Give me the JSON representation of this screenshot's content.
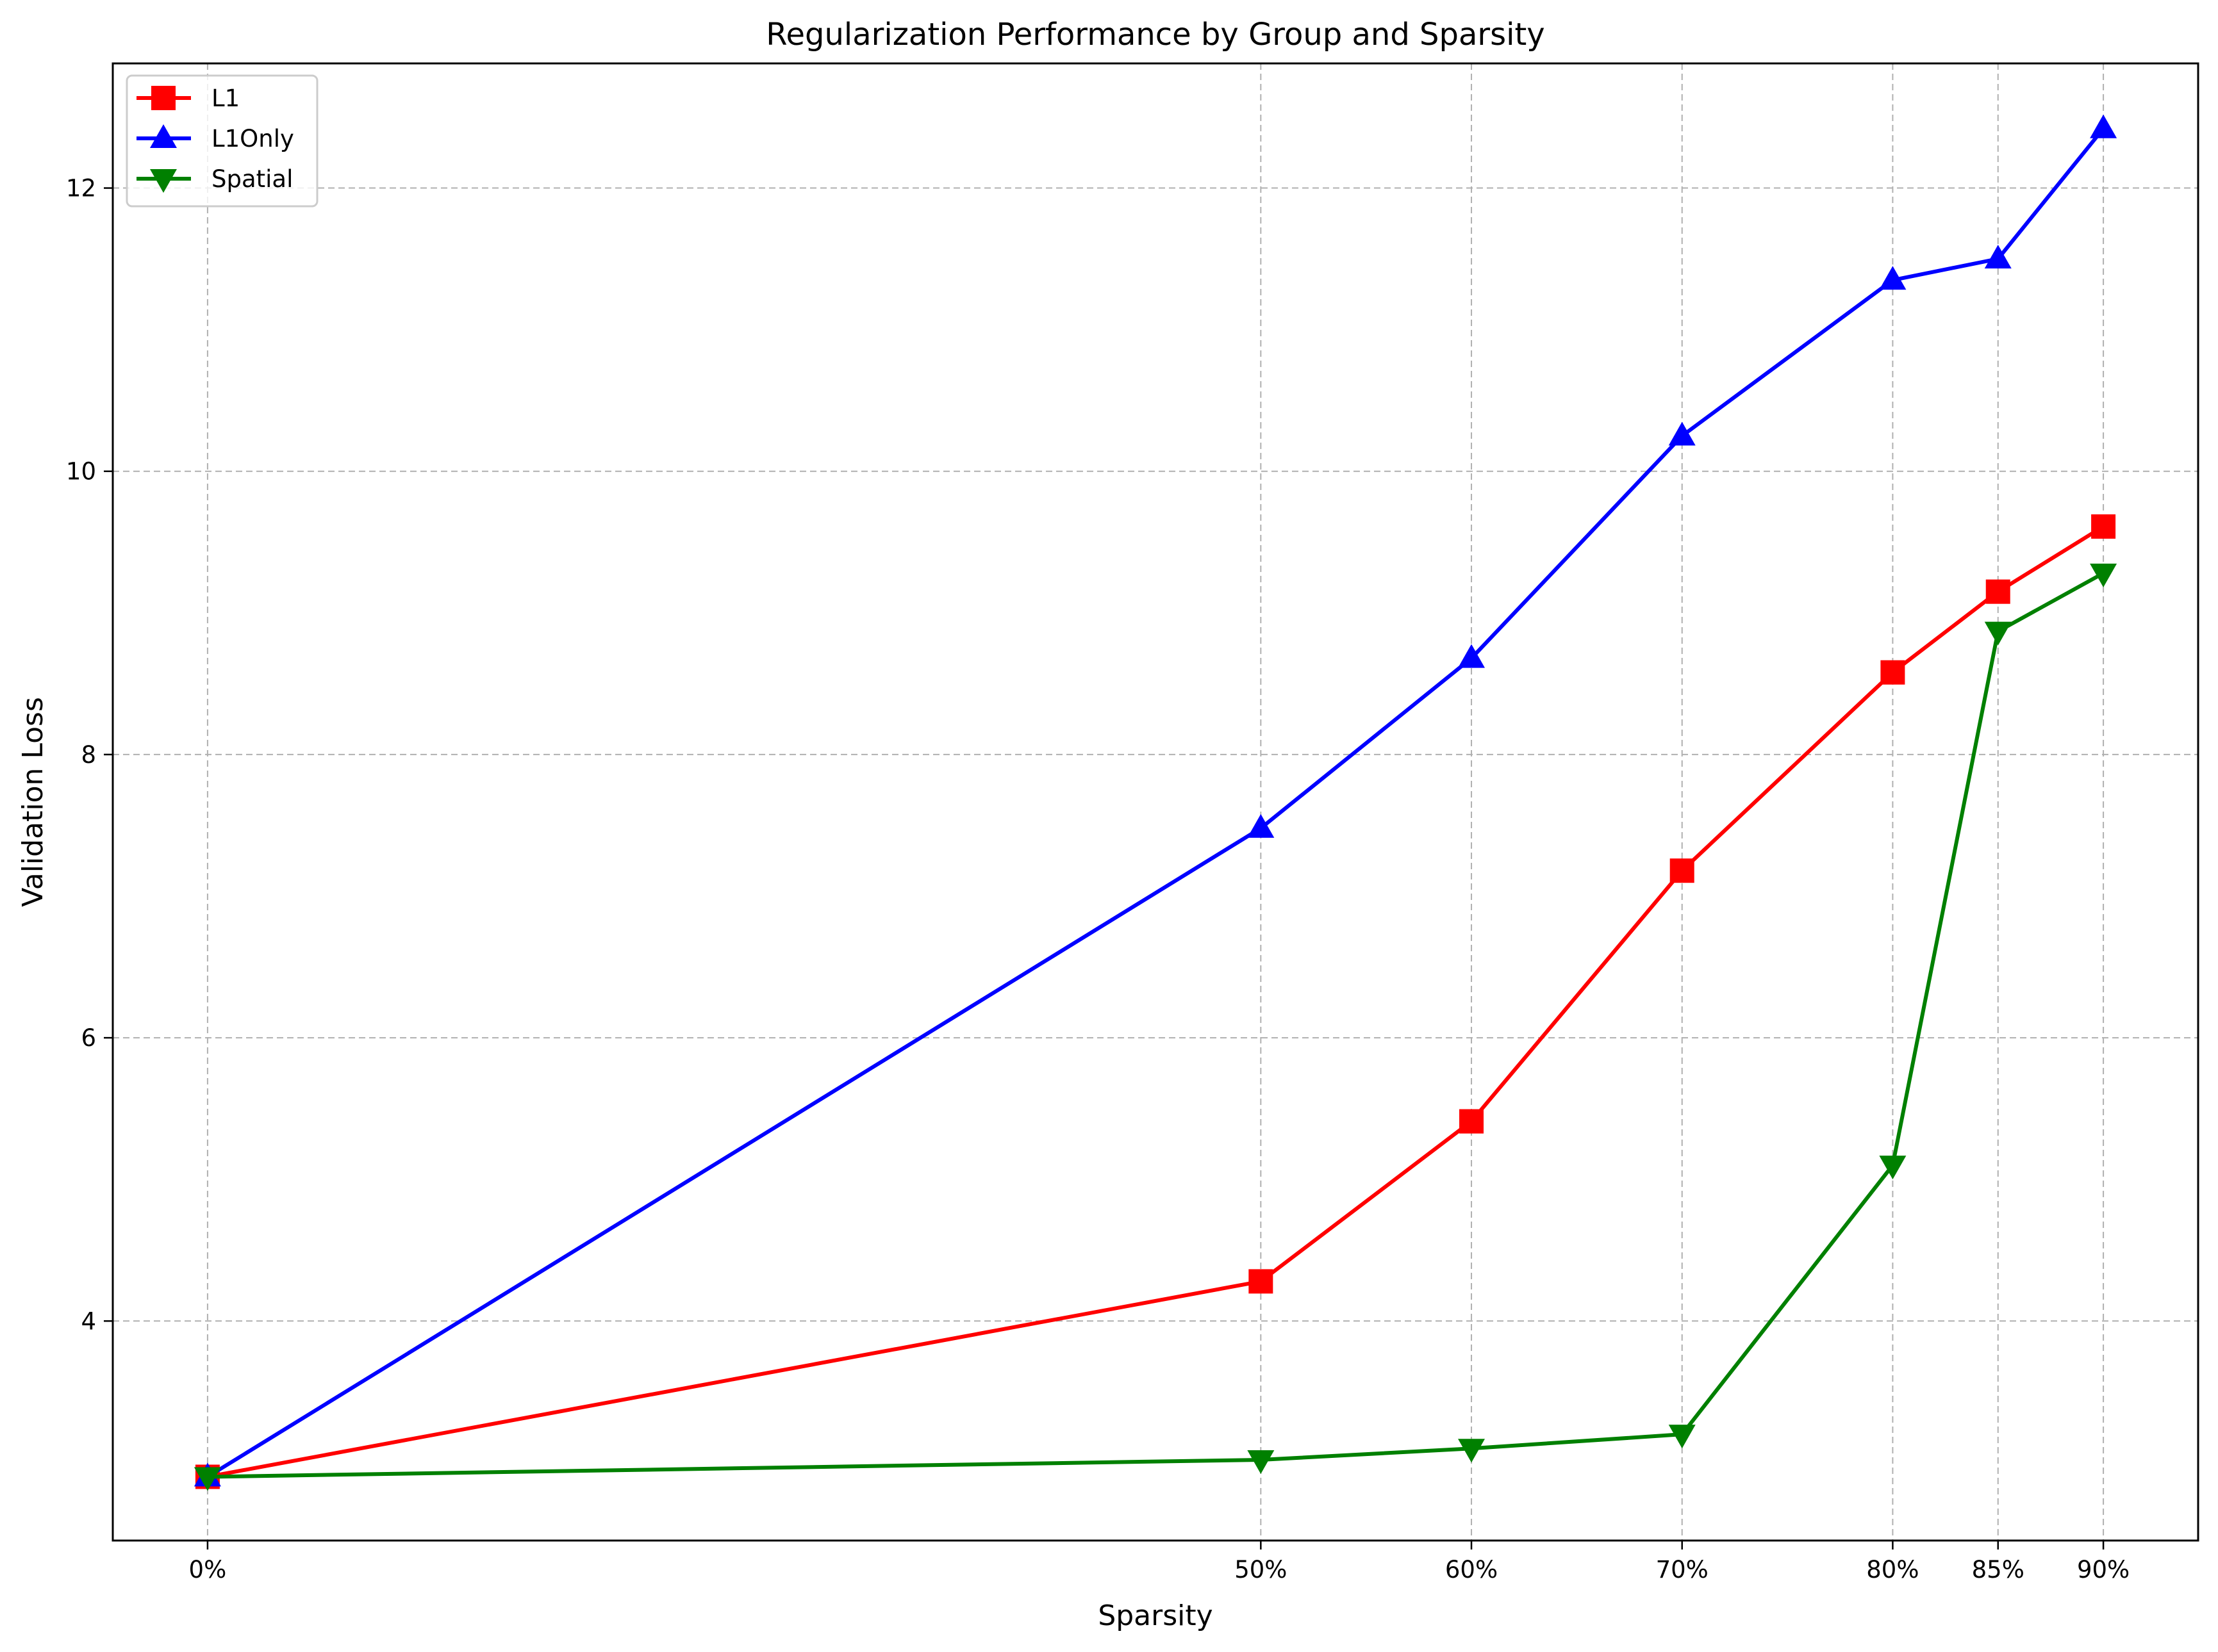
{
  "chart_data": {
    "type": "line",
    "title": "Regularization Performance by Group and Sparsity",
    "xlabel": "Sparsity",
    "ylabel": "Validation Loss",
    "x": [
      0,
      50,
      60,
      70,
      80,
      85,
      90
    ],
    "x_tick_labels": [
      "0%",
      "50%",
      "60%",
      "70%",
      "80%",
      "85%",
      "90%"
    ],
    "y_ticks": [
      4,
      6,
      8,
      10,
      12
    ],
    "xlim": [
      -4.5,
      94.5
    ],
    "ylim": [
      2.45,
      12.88
    ],
    "grid": true,
    "legend_position": "top-left",
    "series": [
      {
        "name": "L1",
        "color": "#ff0000",
        "marker": "square",
        "values": [
          2.9,
          4.28,
          5.41,
          7.18,
          8.58,
          9.15,
          9.61
        ]
      },
      {
        "name": "L1Only",
        "color": "#0000ff",
        "marker": "triangle-up",
        "values": [
          2.9,
          7.48,
          8.68,
          10.25,
          11.35,
          11.5,
          12.42
        ]
      },
      {
        "name": "Spatial",
        "color": "#008000",
        "marker": "triangle-down",
        "values": [
          2.9,
          3.02,
          3.1,
          3.2,
          5.1,
          8.87,
          9.28
        ]
      }
    ]
  }
}
